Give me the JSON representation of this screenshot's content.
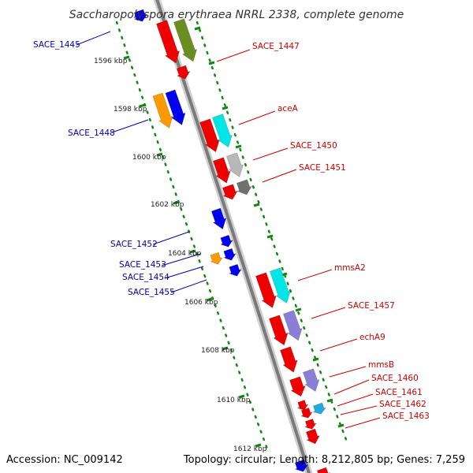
{
  "header": {
    "title": "Saccharopolyspora erythraea NRRL 2338, complete genome"
  },
  "footer": {
    "accession": "Accession: NC_009142",
    "summary": "Topology: circular; Length: 8,212,805 bp; Genes: 7,259"
  },
  "scale": {
    "ticks": [
      "1596 kbp",
      "1598 kbp",
      "1600 kbp",
      "1602 kbp",
      "1604 kbp",
      "1606 kbp",
      "1608 kbp",
      "1610 kbp",
      "1612 kbp"
    ]
  },
  "genes": {
    "forward": [
      "SACE_1447",
      "aceA",
      "SACE_1450",
      "SACE_1451",
      "mmsA2",
      "SACE_1457",
      "echA9",
      "mmsB",
      "SACE_1460",
      "SACE_1461",
      "SACE_1462",
      "SACE_1463"
    ],
    "reverse": [
      "SACE_1445",
      "SACE_1448",
      "SACE_1452",
      "SACE_1453",
      "SACE_1454",
      "SACE_1455"
    ]
  },
  "colors": {
    "backbone": "#808080",
    "backbone_highlight": "#d8d8d8",
    "ruler_dots": "#118811",
    "cds": "#ee0000",
    "blue": "#0000ee",
    "orange": "#ff9900",
    "cyan": "#00e5e5",
    "olive": "#6b8e23",
    "lavender": "#8a7fd6",
    "gray": "#b8b8b8",
    "darkgray": "#707070",
    "skyblue": "#22aadd",
    "fwd_label": "#cc0000",
    "rev_label": "#0000aa"
  }
}
